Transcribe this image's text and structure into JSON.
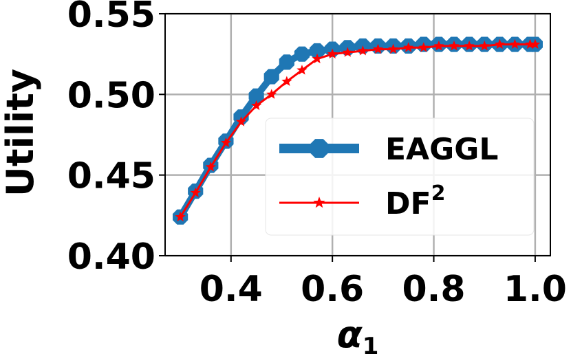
{
  "chart_data": {
    "type": "line",
    "xlabel": "α",
    "xlabel_sub": "1",
    "ylabel": "Utility",
    "xlim": [
      0.27,
      1.03
    ],
    "ylim": [
      0.4,
      0.55
    ],
    "xticks": [
      "0.4",
      "0.6",
      "0.8",
      "1.0"
    ],
    "xtick_values": [
      0.4,
      0.6,
      0.8,
      1.0
    ],
    "yticks": [
      "0.40",
      "0.45",
      "0.50",
      "0.55"
    ],
    "ytick_values": [
      0.4,
      0.45,
      0.5,
      0.55
    ],
    "grid": true,
    "legend_position": "center-right",
    "series": [
      {
        "name": "EAGGL",
        "color": "#1f77b4",
        "marker": "octagon",
        "x": [
          0.3,
          0.33,
          0.36,
          0.39,
          0.42,
          0.45,
          0.48,
          0.51,
          0.54,
          0.57,
          0.6,
          0.63,
          0.66,
          0.69,
          0.72,
          0.75,
          0.78,
          0.81,
          0.84,
          0.87,
          0.9,
          0.93,
          0.96,
          0.99,
          1.0
        ],
        "values": [
          0.424,
          0.44,
          0.456,
          0.471,
          0.486,
          0.499,
          0.511,
          0.52,
          0.525,
          0.527,
          0.528,
          0.529,
          0.53,
          0.53,
          0.53,
          0.53,
          0.531,
          0.531,
          0.531,
          0.531,
          0.531,
          0.531,
          0.531,
          0.531,
          0.531
        ]
      },
      {
        "name": "DF",
        "name_sup": "2",
        "color": "#ff0000",
        "marker": "star",
        "x": [
          0.3,
          0.33,
          0.36,
          0.39,
          0.42,
          0.45,
          0.48,
          0.51,
          0.54,
          0.57,
          0.6,
          0.63,
          0.66,
          0.69,
          0.72,
          0.75,
          0.78,
          0.81,
          0.84,
          0.87,
          0.9,
          0.93,
          0.96,
          0.99,
          1.0
        ],
        "values": [
          0.424,
          0.439,
          0.455,
          0.47,
          0.483,
          0.493,
          0.5,
          0.508,
          0.515,
          0.522,
          0.525,
          0.526,
          0.527,
          0.528,
          0.528,
          0.529,
          0.529,
          0.53,
          0.53,
          0.53,
          0.53,
          0.531,
          0.531,
          0.531,
          0.531
        ]
      }
    ]
  }
}
